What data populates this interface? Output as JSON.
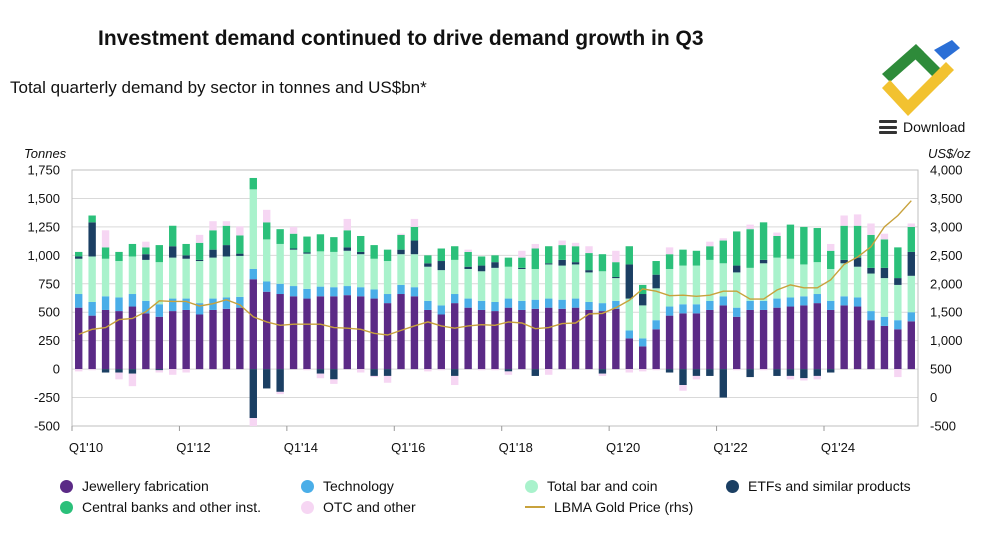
{
  "title": "Investment demand continued to drive demand growth in Q3",
  "subtitle": "Total quarterly demand by sector in tonnes and US$bn*",
  "download_label": "Download",
  "chart_data": {
    "type": "bar",
    "stacked": true,
    "left_axis": {
      "label": "Tonnes",
      "min": -500,
      "max": 1750,
      "ticks": [
        -500,
        -250,
        0,
        250,
        500,
        750,
        1000,
        1250,
        1500,
        1750
      ],
      "tick_labels": [
        "-500",
        "-250",
        "0",
        "250",
        "500",
        "750",
        "1,000",
        "1,250",
        "1,500",
        "1,750"
      ]
    },
    "right_axis": {
      "label": "US$/oz",
      "min": -500,
      "max": 4000,
      "ticks": [
        -500,
        0,
        500,
        1000,
        1500,
        2000,
        2500,
        3000,
        3500,
        4000
      ],
      "tick_labels": [
        "-500",
        "0",
        "500",
        "1,000",
        "1,500",
        "2,000",
        "2,500",
        "3,000",
        "3,500",
        "4,000"
      ]
    },
    "x_tick_labels": [
      {
        "index": 0,
        "label": "Q1'10"
      },
      {
        "index": 8,
        "label": "Q1'12"
      },
      {
        "index": 16,
        "label": "Q1'14"
      },
      {
        "index": 24,
        "label": "Q1'16"
      },
      {
        "index": 32,
        "label": "Q1'18"
      },
      {
        "index": 40,
        "label": "Q1'20"
      },
      {
        "index": 48,
        "label": "Q1'22"
      },
      {
        "index": 56,
        "label": "Q1'24"
      }
    ],
    "quarters": 63,
    "series": [
      {
        "name": "Jewellery fabrication",
        "color": "#5b2a86",
        "values": [
          540,
          470,
          520,
          510,
          550,
          490,
          460,
          510,
          520,
          480,
          520,
          530,
          540,
          790,
          680,
          660,
          640,
          620,
          640,
          640,
          650,
          640,
          620,
          580,
          660,
          640,
          520,
          480,
          580,
          540,
          520,
          510,
          540,
          520,
          530,
          540,
          530,
          540,
          520,
          510,
          530,
          270,
          200,
          350,
          470,
          490,
          490,
          520,
          560,
          460,
          520,
          520,
          540,
          550,
          560,
          580,
          520,
          560,
          550,
          430,
          380,
          350,
          420
        ]
      },
      {
        "name": "Technology",
        "color": "#4aaee8",
        "values": [
          120,
          120,
          120,
          120,
          110,
          110,
          110,
          110,
          100,
          100,
          100,
          100,
          95,
          90,
          90,
          90,
          90,
          85,
          85,
          80,
          80,
          80,
          80,
          80,
          80,
          80,
          80,
          80,
          80,
          80,
          80,
          80,
          80,
          80,
          80,
          80,
          80,
          80,
          70,
          70,
          70,
          70,
          70,
          80,
          80,
          80,
          80,
          80,
          80,
          80,
          80,
          80,
          80,
          80,
          80,
          80,
          80,
          80,
          80,
          80,
          80,
          80,
          80
        ]
      },
      {
        "name": "Total bar and coin",
        "color": "#a9f2cc",
        "values": [
          310,
          400,
          330,
          320,
          330,
          360,
          370,
          360,
          350,
          370,
          360,
          360,
          360,
          700,
          370,
          350,
          320,
          310,
          310,
          310,
          310,
          290,
          270,
          290,
          270,
          290,
          300,
          310,
          300,
          260,
          260,
          300,
          280,
          280,
          270,
          300,
          300,
          300,
          260,
          280,
          200,
          280,
          290,
          280,
          330,
          340,
          340,
          360,
          290,
          310,
          290,
          330,
          360,
          340,
          280,
          280,
          280,
          290,
          270,
          330,
          340,
          310,
          320
        ]
      },
      {
        "name": "ETFs and similar products",
        "color": "#1b3f63",
        "values": [
          20,
          300,
          -30,
          -30,
          -40,
          50,
          -10,
          100,
          30,
          10,
          70,
          100,
          20,
          -430,
          -170,
          -200,
          10,
          10,
          -40,
          -90,
          30,
          20,
          -60,
          -60,
          40,
          120,
          30,
          80,
          -60,
          20,
          50,
          50,
          -20,
          10,
          -60,
          10,
          50,
          20,
          20,
          -40,
          10,
          300,
          100,
          120,
          -30,
          -140,
          -60,
          -60,
          -250,
          60,
          -70,
          30,
          -60,
          -60,
          -80,
          -60,
          -30,
          30,
          80,
          50,
          90,
          60,
          210
        ]
      },
      {
        "name": "Central banks and other inst.",
        "color": "#2bc07a",
        "values": [
          40,
          60,
          100,
          80,
          110,
          60,
          150,
          180,
          100,
          150,
          170,
          170,
          160,
          100,
          150,
          130,
          130,
          140,
          150,
          130,
          150,
          140,
          120,
          100,
          130,
          120,
          70,
          110,
          120,
          130,
          80,
          60,
          80,
          90,
          180,
          150,
          130,
          140,
          150,
          150,
          130,
          160,
          80,
          120,
          130,
          140,
          130,
          120,
          200,
          300,
          340,
          330,
          190,
          300,
          330,
          300,
          160,
          300,
          280,
          290,
          250,
          270,
          220
        ]
      },
      {
        "name": "OTC and other",
        "color": "#f6d6f3",
        "values": [
          -20,
          -10,
          150,
          -60,
          -110,
          50,
          -20,
          -50,
          -30,
          70,
          80,
          40,
          80,
          -70,
          110,
          -20,
          60,
          -10,
          -40,
          -40,
          100,
          -30,
          -10,
          -60,
          10,
          70,
          -20,
          -10,
          -80,
          20,
          -10,
          -10,
          -30,
          60,
          40,
          -50,
          40,
          30,
          60,
          -20,
          100,
          -30,
          -20,
          -10,
          60,
          -50,
          -30,
          40,
          20,
          -10,
          40,
          -10,
          30,
          -30,
          -20,
          -30,
          60,
          90,
          100,
          100,
          50,
          -70,
          30
        ]
      }
    ],
    "line": {
      "name": "LBMA Gold Price (rhs)",
      "color": "#c8a23c",
      "values": [
        1110,
        1200,
        1230,
        1370,
        1390,
        1510,
        1700,
        1690,
        1690,
        1610,
        1650,
        1720,
        1630,
        1420,
        1330,
        1270,
        1290,
        1290,
        1290,
        1230,
        1220,
        1200,
        1130,
        1100,
        1180,
        1260,
        1330,
        1260,
        1220,
        1260,
        1280,
        1270,
        1330,
        1310,
        1210,
        1230,
        1300,
        1310,
        1470,
        1480,
        1580,
        1710,
        1910,
        1870,
        1790,
        1800,
        1780,
        1800,
        1870,
        1870,
        1730,
        1730,
        1890,
        1980,
        1930,
        1930,
        2070,
        2340,
        2470,
        2650,
        3000,
        3200,
        3460
      ]
    },
    "legend_position": "bottom"
  },
  "colors": {
    "jewellery": "#5b2a86",
    "technology": "#4aaee8",
    "bar_coin": "#a9f2cc",
    "etfs": "#1b3f63",
    "central_banks": "#2bc07a",
    "otc": "#f6d6f3",
    "gold": "#c8a23c",
    "logo_green": "#2e8b3a",
    "logo_yellow": "#f2c230",
    "logo_blue": "#2b6fd6"
  },
  "legend": [
    {
      "label": "Jewellery fabrication",
      "color": "#5b2a86",
      "kind": "dot"
    },
    {
      "label": "Technology",
      "color": "#4aaee8",
      "kind": "dot"
    },
    {
      "label": "Total bar and coin",
      "color": "#a9f2cc",
      "kind": "dot"
    },
    {
      "label": "ETFs and similar products",
      "color": "#1b3f63",
      "kind": "dot"
    },
    {
      "label": "Central banks and other inst.",
      "color": "#2bc07a",
      "kind": "dot"
    },
    {
      "label": "OTC and other",
      "color": "#f6d6f3",
      "kind": "dot"
    },
    {
      "label": "LBMA Gold Price (rhs)",
      "color": "#c8a23c",
      "kind": "line"
    }
  ]
}
